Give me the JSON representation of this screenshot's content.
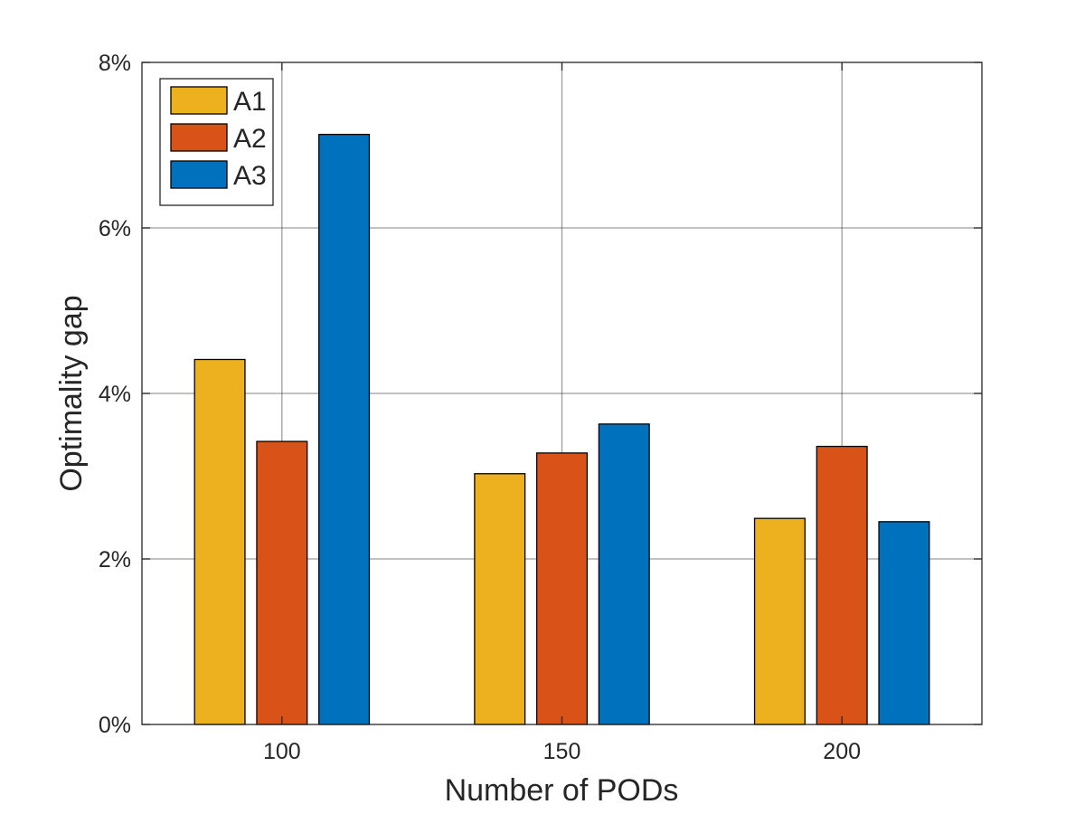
{
  "chart_data": {
    "type": "bar",
    "title": "",
    "xlabel": "Number of PODs",
    "ylabel": "Optimality gap",
    "categories": [
      "100",
      "150",
      "200"
    ],
    "series": [
      {
        "name": "A1",
        "color": "#EDB120",
        "values": [
          4.41,
          3.03,
          2.49
        ]
      },
      {
        "name": "A2",
        "color": "#D95319",
        "values": [
          3.42,
          3.28,
          3.36
        ]
      },
      {
        "name": "A3",
        "color": "#0072BD",
        "values": [
          7.13,
          3.63,
          2.45
        ]
      }
    ],
    "ylim": [
      0,
      8
    ],
    "yticks": [
      0,
      2,
      4,
      6,
      8
    ],
    "ytick_labels": [
      "0%",
      "2%",
      "4%",
      "6%",
      "8%"
    ],
    "grid": true,
    "legend_position": "top-left",
    "units": "%"
  }
}
